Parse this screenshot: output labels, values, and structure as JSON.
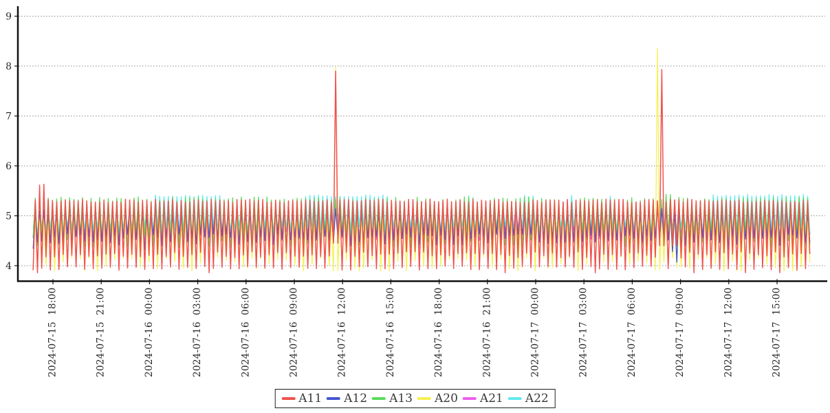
{
  "chart_data": {
    "type": "line",
    "title": "",
    "xlabel": "",
    "ylabel": "",
    "grid": true,
    "legend_position": "bottom-center",
    "y_axis": {
      "ticks": [
        4,
        5,
        6,
        7,
        8,
        9
      ],
      "min": 3.7,
      "max": 9.2
    },
    "x_axis": {
      "tick_spacing_hours": 3,
      "ticks": [
        {
          "hours": 0,
          "label": "2024-07-15 18:00"
        },
        {
          "hours": 3,
          "label": "2024-07-15 21:00"
        },
        {
          "hours": 6,
          "label": "2024-07-16 00:00"
        },
        {
          "hours": 9,
          "label": "2024-07-16 03:00"
        },
        {
          "hours": 12,
          "label": "2024-07-16 06:00"
        },
        {
          "hours": 15,
          "label": "2024-07-16 09:00"
        },
        {
          "hours": 18,
          "label": "2024-07-16 12:00"
        },
        {
          "hours": 21,
          "label": "2024-07-16 15:00"
        },
        {
          "hours": 24,
          "label": "2024-07-16 18:00"
        },
        {
          "hours": 27,
          "label": "2024-07-16 21:00"
        },
        {
          "hours": 30,
          "label": "2024-07-17 00:00"
        },
        {
          "hours": 33,
          "label": "2024-07-17 03:00"
        },
        {
          "hours": 36,
          "label": "2024-07-17 06:00"
        },
        {
          "hours": 39,
          "label": "2024-07-17 09:00"
        },
        {
          "hours": 42,
          "label": "2024-07-17 12:00"
        },
        {
          "hours": 45,
          "label": "2024-07-17 15:00"
        }
      ]
    },
    "time_span_hours": {
      "start": -1.23,
      "end": 47.05
    },
    "oscillation_period_minutes": 16,
    "notable_events": [
      {
        "time": "2024-07-16 11:30",
        "desc": "spike",
        "A20_peak": 7.97,
        "A11_peak": 7.9
      },
      {
        "time": "2024-07-17 07:40",
        "desc": "spike",
        "A20_peak": 8.35,
        "A11_peak": 7.93
      },
      {
        "time": "2024-07-17 08:20-09:10",
        "desc": "A12 dip",
        "A12_min": 4.05
      },
      {
        "time": "2024-07-15 17:00",
        "desc": "start transient",
        "A11_peak": 5.62,
        "A20_min": 3.88
      }
    ],
    "draw_order": [
      "A21",
      "A22",
      "A13",
      "A20",
      "A12",
      "A11"
    ],
    "series": [
      {
        "name": "A11",
        "color": "#f0524f",
        "stroke_width": 1.5,
        "seed": 11,
        "peak": {
          "base": 5.3,
          "jitter": 0.035
        },
        "valley": {
          "base": 4.22,
          "jitter": 0.06,
          "alt": 3.95,
          "alt_jitter": 0.04,
          "rare_low": {
            "p": 0.05,
            "value": 3.86
          }
        },
        "peak_windows": [
          {
            "from": -1.0,
            "to": -0.55,
            "value": 5.62
          },
          {
            "from": 17.62,
            "to": 17.78,
            "value": 5.58
          },
          {
            "from": 37.76,
            "to": 37.9,
            "value": 5.5
          }
        ],
        "valley_windows": [
          {
            "from": 38.3,
            "to": 39.3,
            "value": 4.38
          }
        ],
        "dips": [
          {
            "at": -0.82,
            "value": 3.85,
            "width": 0.2
          },
          {
            "at": 39.05,
            "value": 4.15,
            "width": 0.45
          }
        ],
        "spikes": [
          {
            "at": 17.55,
            "value": 7.9,
            "valley": 4.45
          },
          {
            "at": 37.72,
            "value": 7.93,
            "valley": 4.4
          }
        ]
      },
      {
        "name": "A12",
        "color": "#4656cf",
        "stroke_width": 1.3,
        "seed": 12,
        "peak": {
          "base": 5.1,
          "jitter": 0.08
        },
        "valley": {
          "base": 4.52,
          "jitter": 0.12,
          "rare_low": {
            "p": 0.05,
            "value": 4.32
          }
        },
        "dips": [
          {
            "at": -1.15,
            "value": 4.25,
            "width": 0.45
          },
          {
            "at": 38.75,
            "value": 4.05,
            "width": 1.0
          }
        ]
      },
      {
        "name": "A13",
        "color": "#5bdb5b",
        "stroke_width": 1.3,
        "seed": 13,
        "peak": {
          "base": 5.33,
          "jitter": 0.05
        },
        "valley": {
          "base": 4.52,
          "jitter": 0.15
        },
        "peak_windows": [
          {
            "from": 37.95,
            "to": 38.45,
            "value": 5.44
          }
        ]
      },
      {
        "name": "A20",
        "color": "#f5f153",
        "stroke_width": 1.3,
        "seed": 20,
        "peak": {
          "base": 5.0,
          "jitter": 0.1
        },
        "valley": {
          "base": 4.06,
          "jitter": 0.12,
          "rare_low": {
            "p": 0.08,
            "value": 3.9
          }
        },
        "dips": [
          {
            "at": -1.05,
            "value": 3.88,
            "width": 0.5
          }
        ],
        "spikes": [
          {
            "at": 17.5,
            "value": 7.97,
            "valley": 3.9
          },
          {
            "at": 37.66,
            "value": 8.35,
            "valley": 3.92
          }
        ]
      },
      {
        "name": "A21",
        "color": "#ec5fec",
        "stroke_width": 1.3,
        "seed": 21,
        "peak": {
          "base": 5.2,
          "jitter": 0.06
        },
        "valley": {
          "base": 4.6,
          "jitter": 0.12,
          "rare_low": {
            "p": 0.04,
            "value": 4.18
          }
        },
        "peak_windows": [
          {
            "from": 6.5,
            "to": 6.6,
            "value": 5.32
          },
          {
            "from": 17.82,
            "to": 17.95,
            "value": 5.33
          },
          {
            "from": 24.0,
            "to": 24.12,
            "value": 5.32
          },
          {
            "from": 33.0,
            "to": 33.1,
            "value": 5.31
          },
          {
            "from": 42.5,
            "to": 42.6,
            "value": 5.33
          }
        ],
        "dips": [
          {
            "at": -1.1,
            "value": 4.35,
            "width": 0.3
          }
        ]
      },
      {
        "name": "A22",
        "color": "#62e9f0",
        "stroke_width": 1.3,
        "seed": 22,
        "peak": {
          "base": 5.12,
          "jitter": 0.04
        },
        "valley": {
          "base": 4.7,
          "jitter": 0.1
        },
        "peak_windows": [
          {
            "from": 6.3,
            "to": 10.4,
            "value": 5.4
          },
          {
            "from": 15.6,
            "to": 21.0,
            "value": 5.4
          },
          {
            "from": 25.6,
            "to": 26.1,
            "value": 5.41
          },
          {
            "from": 29.3,
            "to": 30.0,
            "value": 5.4
          },
          {
            "from": 32.0,
            "to": 32.5,
            "value": 5.41
          },
          {
            "from": 34.4,
            "to": 34.8,
            "value": 5.4
          },
          {
            "from": 41.0,
            "to": 47.1,
            "value": 5.41
          }
        ]
      }
    ]
  },
  "legend": {
    "entries": [
      "A11",
      "A12",
      "A13",
      "A20",
      "A21",
      "A22"
    ]
  },
  "style": {
    "axis_color": "#111111",
    "grid_color": "#8a8a8a",
    "tick_label_color": "#262626"
  }
}
